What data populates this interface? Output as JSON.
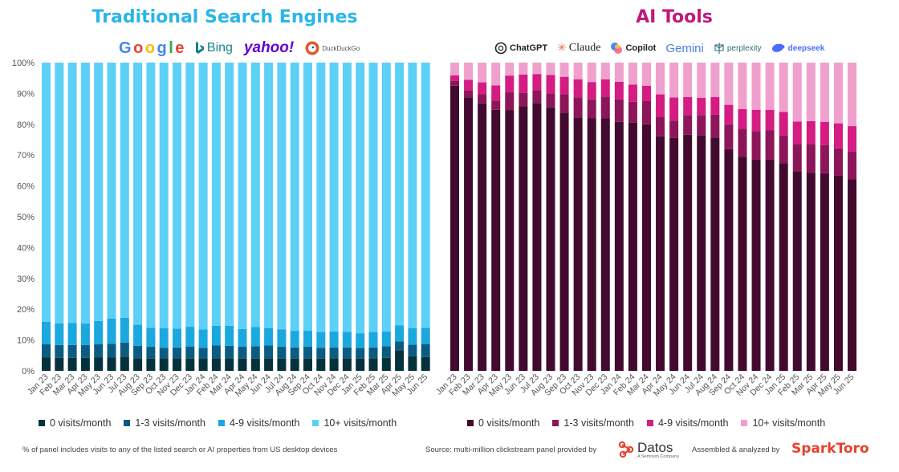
{
  "colors": {
    "search": [
      "#05313d",
      "#0c5c82",
      "#1aa8df",
      "#5dd0f7"
    ],
    "ai": [
      "#420a2f",
      "#8c1659",
      "#d41c83",
      "#f0a0cd"
    ],
    "left_title": "#29b6e8",
    "right_title": "#c2187a"
  },
  "left_panel": {
    "title": "Traditional Search Engines",
    "logos": [
      {
        "name": "google",
        "text": "Google"
      },
      {
        "name": "bing",
        "text": "Bing"
      },
      {
        "name": "yahoo",
        "text": "yahoo!"
      },
      {
        "name": "duckduckgo",
        "text": "DuckDuckGo"
      }
    ]
  },
  "right_panel": {
    "title": "AI Tools",
    "logos": [
      {
        "name": "chatgpt",
        "text": "ChatGPT"
      },
      {
        "name": "claude",
        "text": "Claude"
      },
      {
        "name": "copilot",
        "text": "Copilot"
      },
      {
        "name": "gemini",
        "text": "Gemini"
      },
      {
        "name": "perplexity",
        "text": "perplexity"
      },
      {
        "name": "deepseek",
        "text": "deepseek"
      }
    ]
  },
  "chart_data": [
    {
      "type": "bar",
      "stacked": true,
      "title": "Traditional Search Engines",
      "categories": [
        "Jan 23",
        "Feb 23",
        "Mar 23",
        "Apr 23",
        "May 23",
        "Jun 23",
        "Jul 23",
        "Aug 23",
        "Sep 23",
        "Oct 23",
        "Nov 23",
        "Dec 23",
        "Jan 24",
        "Feb 24",
        "Mar 24",
        "Apr 24",
        "May 24",
        "Jun 24",
        "Jul 24",
        "Aug 24",
        "Sep 24",
        "Oct 24",
        "Nov 24",
        "Dec 24",
        "Jan 25",
        "Feb 25",
        "Mar 25",
        "Apr 25",
        "May 25",
        "Jun 25"
      ],
      "y_ticks": [
        "0%",
        "10%",
        "20%",
        "30%",
        "40%",
        "50%",
        "60%",
        "70%",
        "80%",
        "90%",
        "100%"
      ],
      "ylim": [
        0,
        100
      ],
      "series": [
        {
          "name": "0 visits/month",
          "values": [
            4.3,
            4.2,
            4.2,
            4.2,
            4.3,
            4.4,
            4.6,
            4.1,
            4.0,
            3.9,
            3.9,
            4.0,
            3.9,
            4.1,
            4.1,
            4.0,
            4.0,
            4.1,
            4.0,
            4.0,
            4.0,
            4.0,
            4.1,
            4.1,
            4.0,
            4.1,
            4.2,
            6.7,
            4.7,
            4.5
          ]
        },
        {
          "name": "1-3 visits/month",
          "values": [
            4.3,
            4.2,
            4.2,
            4.2,
            4.3,
            4.4,
            4.6,
            4.0,
            3.8,
            3.6,
            3.7,
            3.9,
            3.5,
            4.1,
            4.0,
            3.8,
            4.0,
            4.1,
            3.8,
            3.6,
            3.8,
            3.5,
            3.5,
            3.5,
            3.4,
            3.5,
            3.8,
            2.8,
            3.8,
            4.2
          ]
        },
        {
          "name": "4-9 visits/month",
          "values": [
            7.3,
            7.0,
            7.1,
            7.0,
            7.6,
            8.2,
            8.0,
            6.9,
            6.2,
            6.3,
            6.1,
            6.4,
            6.0,
            6.4,
            6.5,
            5.8,
            6.2,
            5.7,
            5.7,
            5.4,
            5.2,
            5.1,
            5.2,
            5.1,
            4.8,
            5.0,
            4.8,
            5.3,
            5.3,
            5.3
          ]
        },
        {
          "name": "10+ visits/month",
          "values": [
            84.1,
            84.6,
            84.5,
            84.6,
            83.8,
            83.0,
            82.8,
            85.0,
            86.0,
            86.2,
            86.3,
            85.7,
            86.6,
            85.4,
            85.4,
            86.4,
            85.8,
            86.1,
            86.5,
            87.0,
            87.0,
            87.4,
            87.2,
            87.3,
            87.8,
            87.4,
            87.2,
            85.2,
            86.2,
            86.0
          ]
        }
      ]
    },
    {
      "type": "bar",
      "stacked": true,
      "title": "AI Tools",
      "categories": [
        "Jan 23",
        "Feb 23",
        "Mar 23",
        "Apr 23",
        "May 23",
        "Jun 23",
        "Jul 23",
        "Aug 23",
        "Sep 23",
        "Oct 23",
        "Nov 23",
        "Dec 23",
        "Jan 24",
        "Feb 24",
        "Mar 24",
        "Apr 24",
        "May 24",
        "Jun 24",
        "Jul 24",
        "Aug 24",
        "Sep 24",
        "Oct 24",
        "Nov 24",
        "Dec 24",
        "Jan 25",
        "Feb 25",
        "Mar 25",
        "Apr 25",
        "May 25",
        "Jun 25"
      ],
      "y_ticks": [],
      "ylim": [
        0,
        100
      ],
      "series": [
        {
          "name": "0 visits/month",
          "values": [
            92.5,
            88.7,
            86.8,
            84.7,
            84.5,
            85.9,
            86.9,
            85.5,
            83.8,
            82.2,
            81.9,
            82.0,
            80.8,
            80.5,
            80.0,
            76.1,
            75.6,
            76.6,
            76.4,
            75.7,
            71.9,
            69.5,
            68.5,
            68.5,
            67.4,
            64.8,
            64.3,
            64.1,
            63.3,
            62.1
          ]
        },
        {
          "name": "1-3 visits/month",
          "values": [
            1.6,
            2.2,
            2.9,
            3.0,
            5.9,
            4.3,
            4.1,
            4.5,
            6.0,
            6.5,
            6.2,
            7.0,
            7.3,
            6.8,
            7.5,
            6.3,
            5.6,
            6.4,
            6.6,
            7.4,
            8.1,
            9.0,
            9.3,
            9.5,
            9.0,
            8.8,
            9.3,
            9.1,
            8.9,
            9.0
          ]
        },
        {
          "name": "4-9 visits/month",
          "values": [
            1.8,
            3.5,
            3.9,
            4.9,
            5.4,
            5.9,
            5.3,
            6.0,
            5.6,
            5.9,
            5.6,
            5.6,
            5.7,
            5.6,
            5.0,
            7.3,
            7.5,
            5.8,
            5.6,
            5.7,
            6.3,
            6.4,
            6.9,
            6.7,
            7.6,
            7.3,
            7.4,
            7.6,
            8.1,
            8.3
          ]
        },
        {
          "name": "10+ visits/month",
          "values": [
            4.1,
            5.6,
            6.4,
            7.4,
            4.2,
            3.9,
            3.7,
            4.0,
            4.6,
            5.4,
            6.3,
            5.4,
            6.2,
            7.1,
            7.5,
            10.3,
            11.3,
            11.2,
            11.4,
            11.2,
            13.7,
            15.1,
            15.3,
            15.3,
            16.0,
            19.1,
            19.0,
            19.2,
            19.7,
            20.6
          ]
        }
      ]
    }
  ],
  "footer": {
    "footnote": "% of panel includes visits to any of the listed search or AI properties from US desktop devices",
    "source": "Source: multi-million clickstream panel provided by",
    "datos": "Datos",
    "datos_sub": "A Semrush Company",
    "assembled": "Assembled & analyzed by",
    "sparktoro": "SparkToro"
  }
}
